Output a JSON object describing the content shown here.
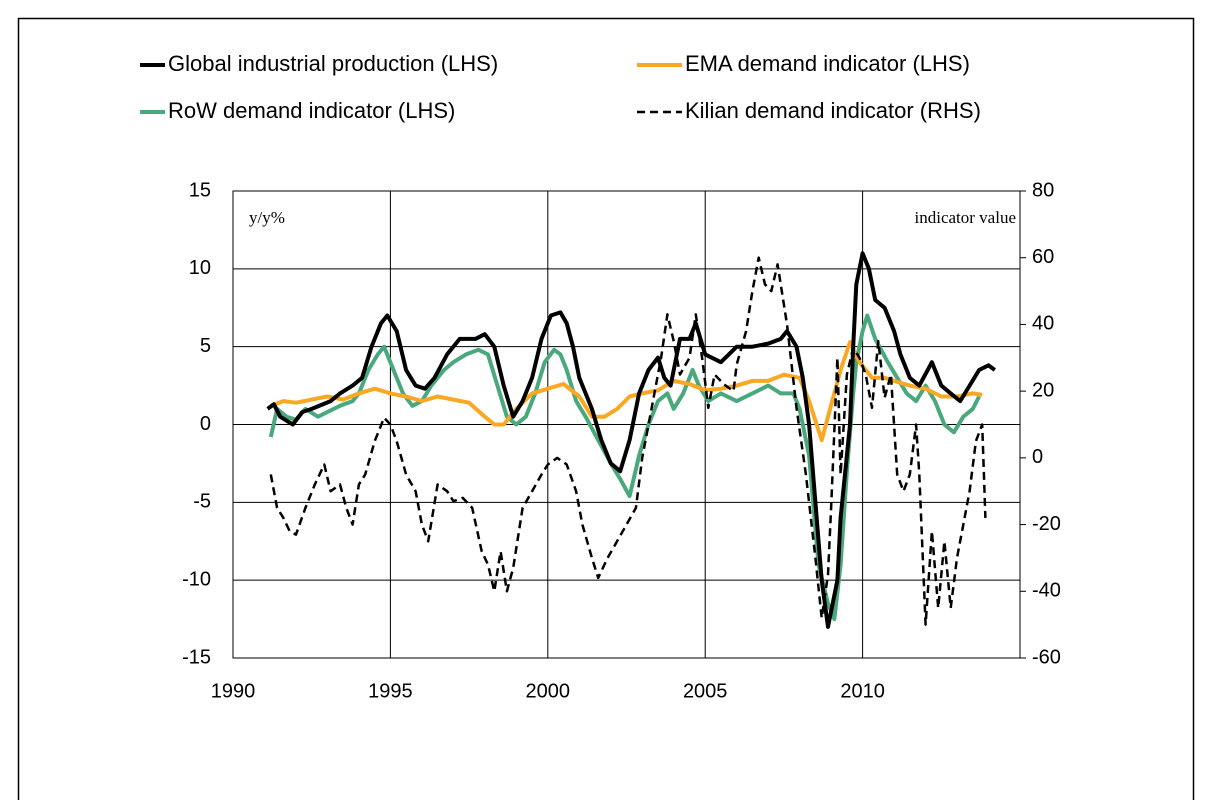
{
  "chart_data": {
    "type": "line",
    "ylabel": "y/y%",
    "y2label": "indicator value",
    "xlim": [
      1990,
      2015
    ],
    "xticks": [
      1990,
      1995,
      2000,
      2005,
      2010
    ],
    "ylim": [
      -15,
      15
    ],
    "yticks": [
      -15,
      -10,
      -5,
      0,
      5,
      10,
      15
    ],
    "y2lim": [
      -60,
      80
    ],
    "y2ticks": [
      -60,
      -40,
      -20,
      0,
      20,
      40,
      60,
      80
    ],
    "grid": true,
    "legend": "top",
    "series": [
      {
        "name": "Global industrial production (LHS)",
        "color": "#000000",
        "x": [
          1991.1,
          1991.3,
          1991.5,
          1991.9,
          1992.2,
          1992.5,
          1993.1,
          1993.4,
          1993.8,
          1994.1,
          1994.4,
          1994.7,
          1994.9,
          1995.2,
          1995.5,
          1995.8,
          1996.1,
          1996.4,
          1996.8,
          1997.2,
          1997.7,
          1998.0,
          1998.3,
          1998.6,
          1998.9,
          1999.2,
          1999.5,
          1999.8,
          2000.1,
          2000.4,
          2000.6,
          2000.8,
          2001.0,
          2001.4,
          2001.7,
          2002.0,
          2002.3,
          2002.6,
          2002.9,
          2003.2,
          2003.5,
          2003.7,
          2003.9,
          2004.2,
          2004.5,
          2004.7,
          2005.0,
          2005.5,
          2006.0,
          2006.5,
          2007.0,
          2007.4,
          2007.6,
          2007.9,
          2008.1,
          2008.3,
          2008.5,
          2008.7,
          2008.9,
          2009.2,
          2009.3,
          2009.6,
          2009.7,
          2009.8,
          2010.0,
          2010.2,
          2010.4,
          2010.7,
          2011.0,
          2011.2,
          2011.5,
          2011.8,
          2012.2,
          2012.5,
          2012.8,
          2013.1,
          2013.4,
          2013.7,
          2014.0,
          2014.2
        ],
        "values": [
          1.0,
          1.3,
          0.5,
          0.0,
          0.8,
          1.0,
          1.5,
          2.0,
          2.5,
          3.0,
          5.0,
          6.5,
          7.0,
          6.0,
          3.5,
          2.5,
          2.3,
          3.0,
          4.5,
          5.5,
          5.5,
          5.8,
          5.0,
          2.5,
          0.5,
          1.5,
          3.0,
          5.5,
          7.0,
          7.2,
          6.5,
          5.0,
          3.0,
          1.0,
          -1.0,
          -2.5,
          -3.0,
          -1.0,
          2.0,
          3.5,
          4.3,
          3.0,
          2.5,
          5.5,
          5.5,
          6.5,
          4.5,
          4.0,
          5.0,
          5.0,
          5.2,
          5.5,
          6.0,
          5.0,
          3.0,
          0.0,
          -5.0,
          -10.0,
          -13.0,
          -10.0,
          -6.0,
          0.0,
          5.0,
          9.0,
          11.0,
          10.0,
          8.0,
          7.5,
          6.0,
          4.5,
          3.0,
          2.5,
          4.0,
          2.5,
          2.0,
          1.5,
          2.5,
          3.5,
          3.8,
          3.5
        ]
      },
      {
        "name": "EMA demand indicator (LHS)",
        "color": "#f9a823",
        "x": [
          1991.2,
          1991.6,
          1992.0,
          1992.5,
          1993.0,
          1993.5,
          1994.0,
          1994.5,
          1995.0,
          1995.5,
          1996.0,
          1996.5,
          1997.0,
          1997.5,
          1998.0,
          1998.3,
          1998.6,
          1999.0,
          1999.5,
          2000.0,
          2000.5,
          2001.0,
          2001.4,
          2001.8,
          2002.2,
          2002.6,
          2003.0,
          2003.5,
          2004.0,
          2004.5,
          2005.0,
          2005.5,
          2006.0,
          2006.5,
          2007.0,
          2007.5,
          2008.0,
          2008.3,
          2008.7,
          2008.9,
          2009.3,
          2009.6,
          2009.9,
          2010.3,
          2010.7,
          2011.0,
          2011.5,
          2012.0,
          2012.5,
          2013.0,
          2013.5,
          2013.8
        ],
        "values": [
          1.2,
          1.5,
          1.4,
          1.6,
          1.8,
          1.6,
          2.0,
          2.3,
          2.0,
          1.8,
          1.5,
          1.8,
          1.6,
          1.4,
          0.5,
          0.0,
          0.0,
          1.0,
          2.0,
          2.3,
          2.6,
          1.8,
          0.5,
          0.5,
          1.0,
          1.8,
          2.0,
          2.2,
          2.8,
          2.6,
          2.2,
          2.3,
          2.5,
          2.8,
          2.8,
          3.2,
          3.0,
          1.5,
          -1.0,
          0.5,
          3.5,
          5.3,
          4.0,
          3.0,
          3.0,
          2.8,
          2.5,
          2.3,
          1.8,
          1.8,
          2.0,
          1.9
        ]
      },
      {
        "name": "RoW demand indicator (LHS)",
        "color": "#4aa97c",
        "x": [
          1991.2,
          1991.4,
          1991.7,
          1992.0,
          1992.3,
          1992.7,
          1993.0,
          1993.4,
          1993.8,
          1994.0,
          1994.3,
          1994.6,
          1994.8,
          1995.1,
          1995.4,
          1995.7,
          1996.0,
          1996.3,
          1996.7,
          1997.0,
          1997.4,
          1997.8,
          1998.1,
          1998.4,
          1998.7,
          1999.0,
          1999.3,
          1999.6,
          1999.9,
          2000.2,
          2000.4,
          2000.6,
          2000.9,
          2001.2,
          2001.6,
          2002.0,
          2002.3,
          2002.6,
          2002.9,
          2003.2,
          2003.5,
          2003.8,
          2004.0,
          2004.3,
          2004.6,
          2004.8,
          2005.1,
          2005.5,
          2006.0,
          2006.5,
          2007.0,
          2007.4,
          2007.8,
          2008.0,
          2008.3,
          2008.6,
          2008.9,
          2009.1,
          2009.3,
          2009.5,
          2009.7,
          2009.8,
          2010.0,
          2010.15,
          2010.4,
          2010.8,
          2011.1,
          2011.4,
          2011.7,
          2012.0,
          2012.3,
          2012.6,
          2012.9,
          2013.2,
          2013.5,
          2013.7
        ],
        "values": [
          -0.8,
          1.0,
          0.5,
          0.3,
          1.0,
          0.5,
          0.8,
          1.2,
          1.5,
          2.0,
          3.5,
          4.5,
          5.0,
          3.5,
          2.0,
          1.2,
          1.5,
          2.5,
          3.5,
          4.0,
          4.5,
          4.8,
          4.5,
          2.5,
          0.5,
          0.0,
          0.5,
          2.0,
          4.0,
          4.8,
          4.5,
          3.5,
          1.5,
          0.5,
          -1.0,
          -2.5,
          -3.5,
          -4.6,
          -2.0,
          0.0,
          1.5,
          2.0,
          1.0,
          2.0,
          3.5,
          2.5,
          1.5,
          2.0,
          1.5,
          2.0,
          2.5,
          2.0,
          2.0,
          1.0,
          -2.0,
          -9.0,
          -11.5,
          -12.5,
          -9.0,
          -3.0,
          2.0,
          4.0,
          6.0,
          7.0,
          5.5,
          4.0,
          3.0,
          2.0,
          1.5,
          2.5,
          1.5,
          0.0,
          -0.5,
          0.5,
          1.0,
          1.8
        ]
      },
      {
        "name": "Kilian demand indicator (RHS)",
        "color": "#000000",
        "dashed": true,
        "axis": "y2",
        "x": [
          1991.2,
          1991.4,
          1991.6,
          1991.8,
          1992.0,
          1992.3,
          1992.6,
          1992.9,
          1993.1,
          1993.4,
          1993.6,
          1993.8,
          1994.0,
          1994.2,
          1994.5,
          1994.8,
          1995.0,
          1995.2,
          1995.5,
          1995.8,
          1996.0,
          1996.2,
          1996.5,
          1996.8,
          1997.0,
          1997.3,
          1997.6,
          1997.9,
          1998.1,
          1998.3,
          1998.5,
          1998.7,
          1998.9,
          1999.2,
          1999.5,
          1999.8,
          2000.0,
          2000.3,
          2000.6,
          2000.9,
          2001.1,
          2001.4,
          2001.6,
          2001.9,
          2002.2,
          2002.5,
          2002.8,
          2003.0,
          2003.3,
          2003.6,
          2003.8,
          2004.0,
          2004.2,
          2004.5,
          2004.7,
          2004.9,
          2005.1,
          2005.3,
          2005.6,
          2005.9,
          2006.0,
          2006.3,
          2006.5,
          2006.7,
          2006.9,
          2007.1,
          2007.3,
          2007.6,
          2007.9,
          2008.2,
          2008.5,
          2008.7,
          2008.9,
          2009.0,
          2009.2,
          2009.3,
          2009.5,
          2009.7,
          2009.9,
          2010.1,
          2010.3,
          2010.5,
          2010.7,
          2010.9,
          2011.1,
          2011.3,
          2011.5,
          2011.7,
          2011.8,
          2012.0,
          2012.2,
          2012.4,
          2012.6,
          2012.8,
          2013.0,
          2013.2,
          2013.4,
          2013.6,
          2013.8,
          2013.9
        ],
        "values": [
          -5,
          -15,
          -18,
          -22,
          -23,
          -15,
          -8,
          -2,
          -10,
          -8,
          -15,
          -20,
          -8,
          -5,
          5,
          12,
          10,
          5,
          -5,
          -10,
          -20,
          -25,
          -8,
          -10,
          -13,
          -12,
          -15,
          -28,
          -32,
          -40,
          -28,
          -40,
          -33,
          -15,
          -10,
          -5,
          -2,
          0,
          -2,
          -10,
          -20,
          -30,
          -36,
          -30,
          -25,
          -20,
          -15,
          0,
          15,
          30,
          43,
          35,
          25,
          30,
          43,
          30,
          15,
          25,
          22,
          20,
          28,
          38,
          50,
          60,
          52,
          50,
          58,
          40,
          15,
          -5,
          -30,
          -48,
          -35,
          -15,
          30,
          -5,
          25,
          33,
          30,
          25,
          15,
          35,
          18,
          25,
          -5,
          -10,
          -5,
          10,
          -5,
          -50,
          -22,
          -45,
          -25,
          -45,
          -30,
          -20,
          -10,
          5,
          10,
          -18
        ]
      }
    ]
  }
}
